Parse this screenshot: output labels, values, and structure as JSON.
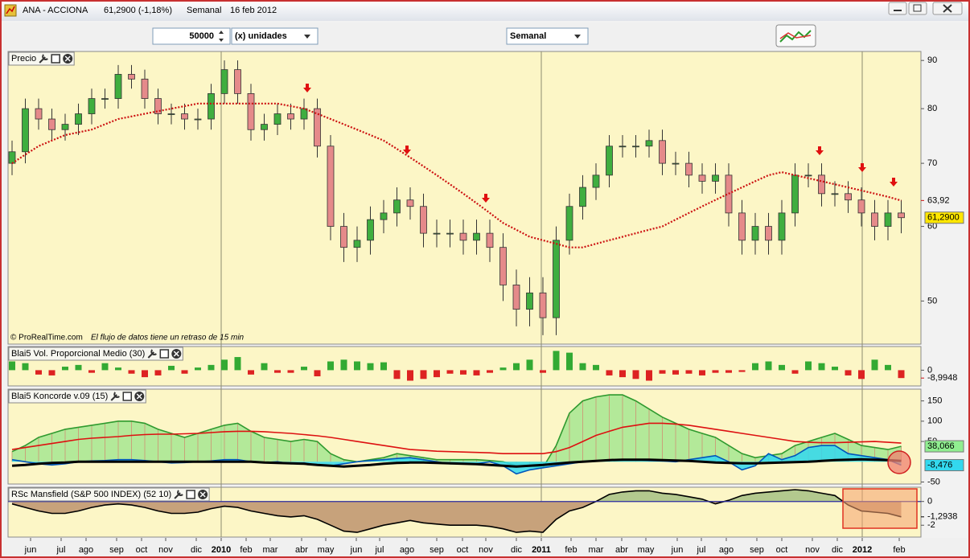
{
  "window": {
    "symbol": "ANA - ACCIONA",
    "quote": "61,2900 (-1,18%)",
    "period": "Semanal",
    "date": "16 feb 2012"
  },
  "toolbar": {
    "quantity": "50000",
    "unit": "(x) unidades",
    "timeframe": "Semanal"
  },
  "x_axis": {
    "labels": [
      "jun",
      "jul",
      "ago",
      "sep",
      "oct",
      "nov",
      "dic",
      "2010",
      "feb",
      "mar",
      "abr",
      "may",
      "jun",
      "jul",
      "ago",
      "sep",
      "oct",
      "nov",
      "dic",
      "2011",
      "feb",
      "mar",
      "abr",
      "may",
      "jun",
      "jul",
      "ago",
      "sep",
      "oct",
      "nov",
      "dic",
      "2012",
      "feb"
    ]
  },
  "chart_data": [
    {
      "type": "candlestick",
      "title": "Precio",
      "source": "© ProRealTime.com",
      "note": "El flujo de datos tiene un retraso de 15 min",
      "log_scale": true,
      "ylim": [
        45,
        92
      ],
      "yticks": [
        90,
        80,
        70,
        60,
        50
      ],
      "up_color": "#3fae3f",
      "down_color": "#e58a8a",
      "open": [
        70,
        72,
        80,
        78,
        76,
        77,
        79,
        82,
        82,
        87,
        86,
        82,
        79,
        79,
        78,
        78,
        83,
        88,
        83,
        76,
        77,
        79,
        78,
        80,
        73,
        60,
        57,
        58,
        61,
        62,
        64,
        63,
        59,
        59,
        59,
        58,
        59,
        57,
        52,
        49,
        51,
        48,
        58,
        63,
        66,
        68,
        73,
        73,
        73,
        74,
        70,
        70,
        68,
        67,
        68,
        62,
        58,
        60,
        58,
        62,
        68,
        68,
        65,
        65,
        64,
        62,
        60,
        62
      ],
      "high": [
        74,
        82,
        82,
        80,
        79,
        81,
        84,
        84,
        89,
        89,
        88,
        84,
        81,
        81,
        80,
        85,
        90,
        90,
        85,
        79,
        81,
        81,
        82,
        82,
        75,
        62,
        60,
        63,
        64,
        66,
        66,
        65,
        61,
        61,
        61,
        61,
        61,
        59,
        54,
        53,
        53,
        60,
        65,
        68,
        70,
        75,
        75,
        75,
        76,
        76,
        72,
        72,
        70,
        70,
        70,
        64,
        62,
        62,
        64,
        70,
        70,
        70,
        67,
        67,
        66,
        64,
        64,
        64
      ],
      "low": [
        68,
        70,
        76,
        74,
        74,
        75,
        77,
        80,
        80,
        84,
        80,
        77,
        77,
        76,
        76,
        76,
        81,
        81,
        74,
        74,
        75,
        76,
        76,
        71,
        58,
        55,
        55,
        56,
        59,
        60,
        61,
        57,
        57,
        57,
        56,
        56,
        55,
        50,
        47,
        47,
        46,
        46,
        56,
        61,
        64,
        66,
        71,
        71,
        71,
        68,
        68,
        66,
        65,
        65,
        60,
        56,
        56,
        56,
        56,
        60,
        66,
        63,
        63,
        62,
        60,
        58,
        58,
        59
      ],
      "close": [
        72,
        80,
        78,
        76,
        77,
        79,
        82,
        82,
        87,
        86,
        82,
        79,
        79,
        78,
        78,
        83,
        88,
        83,
        76,
        77,
        79,
        78,
        80,
        73,
        60,
        57,
        58,
        61,
        62,
        64,
        63,
        59,
        59,
        59,
        58,
        59,
        57,
        52,
        49,
        51,
        48,
        58,
        63,
        66,
        68,
        73,
        73,
        73,
        74,
        70,
        70,
        68,
        67,
        68,
        62,
        58,
        60,
        58,
        62,
        68,
        68,
        65,
        65,
        64,
        62,
        60,
        62,
        61.29
      ],
      "series": [
        {
          "color": "#cc1111",
          "style": "dotted",
          "values": [
            70,
            71.5,
            73,
            74,
            75,
            75.5,
            76,
            77,
            78,
            78.5,
            79,
            79.5,
            80,
            80.5,
            81,
            81,
            81,
            81,
            81,
            81,
            81,
            80.5,
            80,
            79,
            78,
            77,
            76,
            75,
            74,
            72.5,
            71,
            69.5,
            68,
            66.5,
            65,
            63.5,
            62,
            60.5,
            59.5,
            58.5,
            58,
            57.5,
            57,
            57,
            57.5,
            58,
            58.5,
            59,
            59.5,
            60,
            61,
            62,
            63,
            64,
            65,
            66,
            67,
            68,
            68.5,
            68,
            67.5,
            67,
            66.5,
            66,
            65.5,
            65,
            64.5,
            63.92
          ]
        }
      ],
      "last_labels": [
        {
          "value": 63.92,
          "label": "63,92",
          "color": "#cc1111"
        },
        {
          "value": 61.29,
          "label": "61,2900",
          "color": "#000000",
          "background": "#ffe600"
        }
      ]
    },
    {
      "type": "bar",
      "title": "Blai5 Vol. Proporcional Medio (30)",
      "ylim": [
        -18,
        27
      ],
      "yticks": [
        0
      ],
      "positive_color": "#33aa33",
      "negative_color": "#dd2222",
      "values": [
        10,
        8,
        -5,
        -6,
        4,
        6,
        -3,
        8,
        3,
        -4,
        -8,
        -6,
        5,
        -4,
        3,
        6,
        12,
        15,
        -5,
        8,
        -3,
        -3,
        4,
        -7,
        10,
        12,
        10,
        8,
        9,
        -10,
        -12,
        -10,
        -8,
        -4,
        -5,
        -6,
        -3,
        3,
        8,
        12,
        -3,
        22,
        20,
        8,
        6,
        -6,
        -8,
        -10,
        -12,
        -4,
        -5,
        -4,
        -6,
        -3,
        -3,
        -2,
        8,
        10,
        6,
        -4,
        10,
        8,
        4,
        -6,
        -10,
        12,
        6,
        -8.9948
      ],
      "last_labels": [
        {
          "value": -8.9948,
          "label": "-8,9948",
          "color": "#cc1111"
        }
      ]
    },
    {
      "type": "area",
      "title": "Blai5 Koncorde v.09 (15)",
      "ylim": [
        -55,
        179
      ],
      "yticks": [
        150,
        100,
        50,
        -50
      ],
      "series": [
        {
          "color": "#2f9a2f",
          "fill": "#a6e690",
          "values": [
            25,
            40,
            60,
            70,
            80,
            85,
            90,
            95,
            100,
            100,
            95,
            80,
            70,
            60,
            70,
            80,
            90,
            95,
            75,
            60,
            55,
            50,
            55,
            50,
            20,
            5,
            0,
            5,
            10,
            20,
            15,
            10,
            5,
            5,
            5,
            5,
            3,
            0,
            -10,
            -10,
            -15,
            40,
            120,
            150,
            160,
            165,
            165,
            150,
            130,
            110,
            95,
            80,
            70,
            60,
            40,
            20,
            10,
            15,
            20,
            40,
            50,
            60,
            70,
            55,
            40,
            35,
            30,
            38.066
          ]
        },
        {
          "color": "#0055bb",
          "fill": "#33d8ee",
          "values": [
            5,
            0,
            -5,
            -8,
            -5,
            0,
            2,
            3,
            5,
            5,
            3,
            0,
            -3,
            -2,
            0,
            2,
            5,
            5,
            0,
            -2,
            0,
            -5,
            -3,
            -8,
            -10,
            -5,
            0,
            3,
            5,
            8,
            10,
            5,
            0,
            -5,
            -5,
            -5,
            0,
            -10,
            -30,
            -20,
            -15,
            -10,
            -5,
            0,
            2,
            3,
            5,
            5,
            3,
            2,
            0,
            5,
            10,
            15,
            0,
            -20,
            -10,
            20,
            5,
            15,
            35,
            40,
            40,
            20,
            15,
            10,
            5,
            -8.476
          ]
        },
        {
          "color": "#dd1111",
          "values": [
            30,
            35,
            40,
            45,
            50,
            55,
            58,
            60,
            62,
            65,
            67,
            68,
            68,
            69,
            70,
            72,
            74,
            75,
            75,
            74,
            72,
            70,
            67,
            64,
            60,
            55,
            50,
            45,
            40,
            35,
            30,
            28,
            26,
            25,
            24,
            23,
            22,
            20,
            20,
            20,
            20,
            25,
            35,
            50,
            65,
            75,
            85,
            90,
            95,
            95,
            93,
            90,
            85,
            80,
            75,
            70,
            65,
            60,
            55,
            50,
            48,
            47,
            47,
            48,
            49,
            50,
            48,
            46
          ]
        },
        {
          "color": "#000000",
          "values": [
            -10,
            -8,
            -5,
            -3,
            -2,
            0,
            0,
            0,
            0,
            0,
            0,
            0,
            0,
            0,
            0,
            0,
            0,
            0,
            0,
            -2,
            -3,
            -4,
            -5,
            -8,
            -10,
            -12,
            -10,
            -8,
            -5,
            -3,
            -2,
            -2,
            -3,
            -4,
            -5,
            -6,
            -8,
            -10,
            -12,
            -10,
            -8,
            -5,
            -2,
            0,
            2,
            4,
            5,
            5,
            5,
            4,
            3,
            2,
            0,
            -2,
            -3,
            -4,
            -4,
            -3,
            -2,
            -1,
            0,
            2,
            4,
            5,
            6,
            5,
            4,
            2
          ]
        }
      ],
      "last_labels": [
        {
          "value": 38.066,
          "label": "38,066",
          "color": "#000000",
          "background": "#90ee90"
        },
        {
          "value": -8.476,
          "label": "-8,476",
          "color": "#000000",
          "background": "#33d8ee"
        }
      ]
    },
    {
      "type": "area",
      "title": "RSc Mansfield (S&P 500 INDEX) (52 10)",
      "ylim": [
        -3,
        1.2
      ],
      "yticks": [
        0,
        -2
      ],
      "baseline_color": "#2a2aa0",
      "series": [
        {
          "color": "#000000",
          "positive_fill": "#b3c98e",
          "negative_fill": "#c7a27b",
          "values": [
            -0.2,
            -0.5,
            -0.8,
            -1,
            -1,
            -0.8,
            -0.5,
            -0.3,
            -0.2,
            -0.3,
            -0.5,
            -0.8,
            -1,
            -1,
            -0.9,
            -0.6,
            -0.4,
            -0.5,
            -0.8,
            -1,
            -1.2,
            -1.3,
            -1.2,
            -1.5,
            -2,
            -2.5,
            -2.6,
            -2.3,
            -2,
            -1.8,
            -1.6,
            -1.8,
            -1.9,
            -2,
            -2,
            -2,
            -2.1,
            -2.3,
            -2.6,
            -2.5,
            -2.6,
            -1.5,
            -0.8,
            -0.5,
            0,
            0.6,
            0.8,
            0.9,
            0.9,
            0.7,
            0.6,
            0.4,
            0.2,
            -0.2,
            0.1,
            0.5,
            0.7,
            0.8,
            0.9,
            1,
            0.9,
            0.7,
            0.5,
            -0.3,
            -0.8,
            -0.9,
            -1,
            -1.2938
          ]
        }
      ],
      "last_labels": [
        {
          "value": -1.2938,
          "label": "-1,2938",
          "color": "#000000"
        }
      ]
    }
  ]
}
